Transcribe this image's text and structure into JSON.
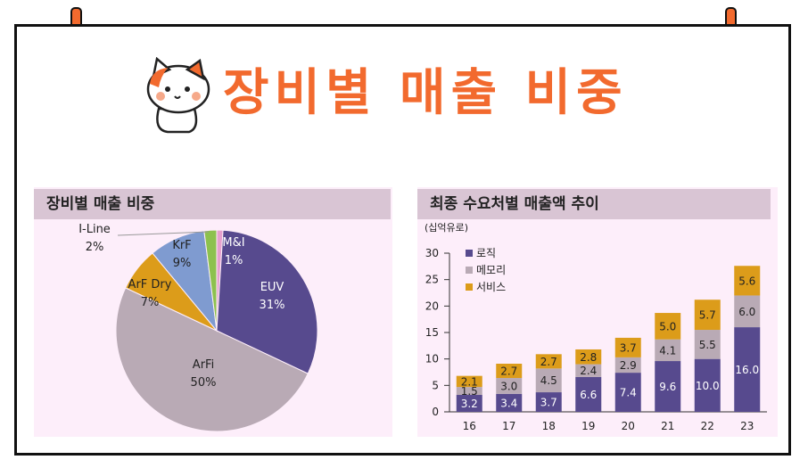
{
  "title": "장비별 매출 비중",
  "colors": {
    "accent": "#f26a2e",
    "panel_bg": "#fdeefa",
    "panel_header": "#d9c5d4"
  },
  "chart_data": [
    {
      "type": "pie",
      "title": "장비별 매출 비중",
      "slices": [
        {
          "label": "M&I",
          "value": 1,
          "display": "1%",
          "color": "#e6a1ce"
        },
        {
          "label": "EUV",
          "value": 31,
          "display": "31%",
          "color": "#574a8e"
        },
        {
          "label": "ArFi",
          "value": 50,
          "display": "50%",
          "color": "#b9aab5"
        },
        {
          "label": "ArF Dry",
          "value": 7,
          "display": "7%",
          "color": "#dc9c1a"
        },
        {
          "label": "KrF",
          "value": 9,
          "display": "9%",
          "color": "#7f9bd0"
        },
        {
          "label": "I-Line",
          "value": 2,
          "display": "2%",
          "color": "#8dc14e"
        }
      ]
    },
    {
      "type": "bar",
      "stacked": true,
      "title": "최종 수요처별 매출액 추이",
      "unit_label": "(십억유로)",
      "categories": [
        "16",
        "17",
        "18",
        "19",
        "20",
        "21",
        "22",
        "23"
      ],
      "series": [
        {
          "name": "로직",
          "color": "#574a8e",
          "values": [
            3.2,
            3.4,
            3.7,
            6.6,
            7.4,
            9.6,
            10.0,
            16.0
          ]
        },
        {
          "name": "메모리",
          "color": "#b9aab5",
          "values": [
            1.5,
            3.0,
            4.5,
            2.4,
            2.9,
            4.1,
            5.5,
            6.0
          ]
        },
        {
          "name": "서비스",
          "color": "#dc9c1a",
          "values": [
            2.1,
            2.7,
            2.7,
            2.8,
            3.7,
            5.0,
            5.7,
            5.6
          ]
        }
      ],
      "ylim": [
        0,
        30
      ],
      "yticks": [
        "0",
        "5",
        "10",
        "15",
        "20",
        "25",
        "30"
      ],
      "legend_position": "top-left"
    }
  ]
}
